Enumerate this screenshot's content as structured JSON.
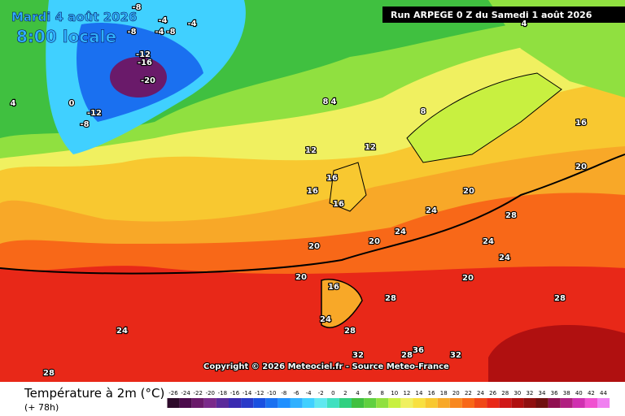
{
  "header": {
    "date": "Mardi 4 août 2026",
    "time": "8:00 locale",
    "run": "Run ARPEGE 0 Z du Samedi 1 août 2026"
  },
  "copyright": "Copyright © 2026 Meteociel.fr - Source Meteo-France",
  "legend": {
    "title": "Température à 2m (°C)",
    "lead": "(+ 78h)",
    "ticks": [
      -26,
      -24,
      -22,
      -20,
      -18,
      -16,
      -14,
      -12,
      -10,
      -8,
      -6,
      -4,
      -2,
      0,
      2,
      4,
      6,
      8,
      10,
      12,
      14,
      16,
      18,
      20,
      22,
      24,
      26,
      28,
      30,
      32,
      34,
      36,
      38,
      40,
      42,
      44
    ],
    "colors": [
      "#2d0a2a",
      "#4b0a4b",
      "#6a1a6a",
      "#7a2a8a",
      "#5a2a9a",
      "#3a2ab0",
      "#2a3ac8",
      "#1a50e0",
      "#1a70f0",
      "#2090ff",
      "#30b0ff",
      "#40d0ff",
      "#60e8f0",
      "#40e0c0",
      "#30d080",
      "#40c040",
      "#60d040",
      "#90e040",
      "#c8f040",
      "#f0f060",
      "#f8e040",
      "#f8c830",
      "#f8a828",
      "#f88820",
      "#f86818",
      "#f04818",
      "#e82818",
      "#d01818",
      "#b01010",
      "#901010",
      "#701010",
      "#901050",
      "#b02080",
      "#d030b0",
      "#f050d0",
      "#f080f0"
    ]
  },
  "map": {
    "labels": [
      -8,
      -4,
      -4,
      -8,
      -4,
      -8,
      -12,
      -16,
      -20,
      -12,
      -8,
      0,
      4,
      4,
      4,
      8,
      8,
      12,
      12,
      16,
      16,
      16,
      16,
      20,
      20,
      20,
      20,
      24,
      24,
      24,
      24,
      28,
      28,
      28,
      28,
      32,
      32,
      36,
      20,
      24,
      28,
      16,
      20,
      24,
      28
    ]
  }
}
